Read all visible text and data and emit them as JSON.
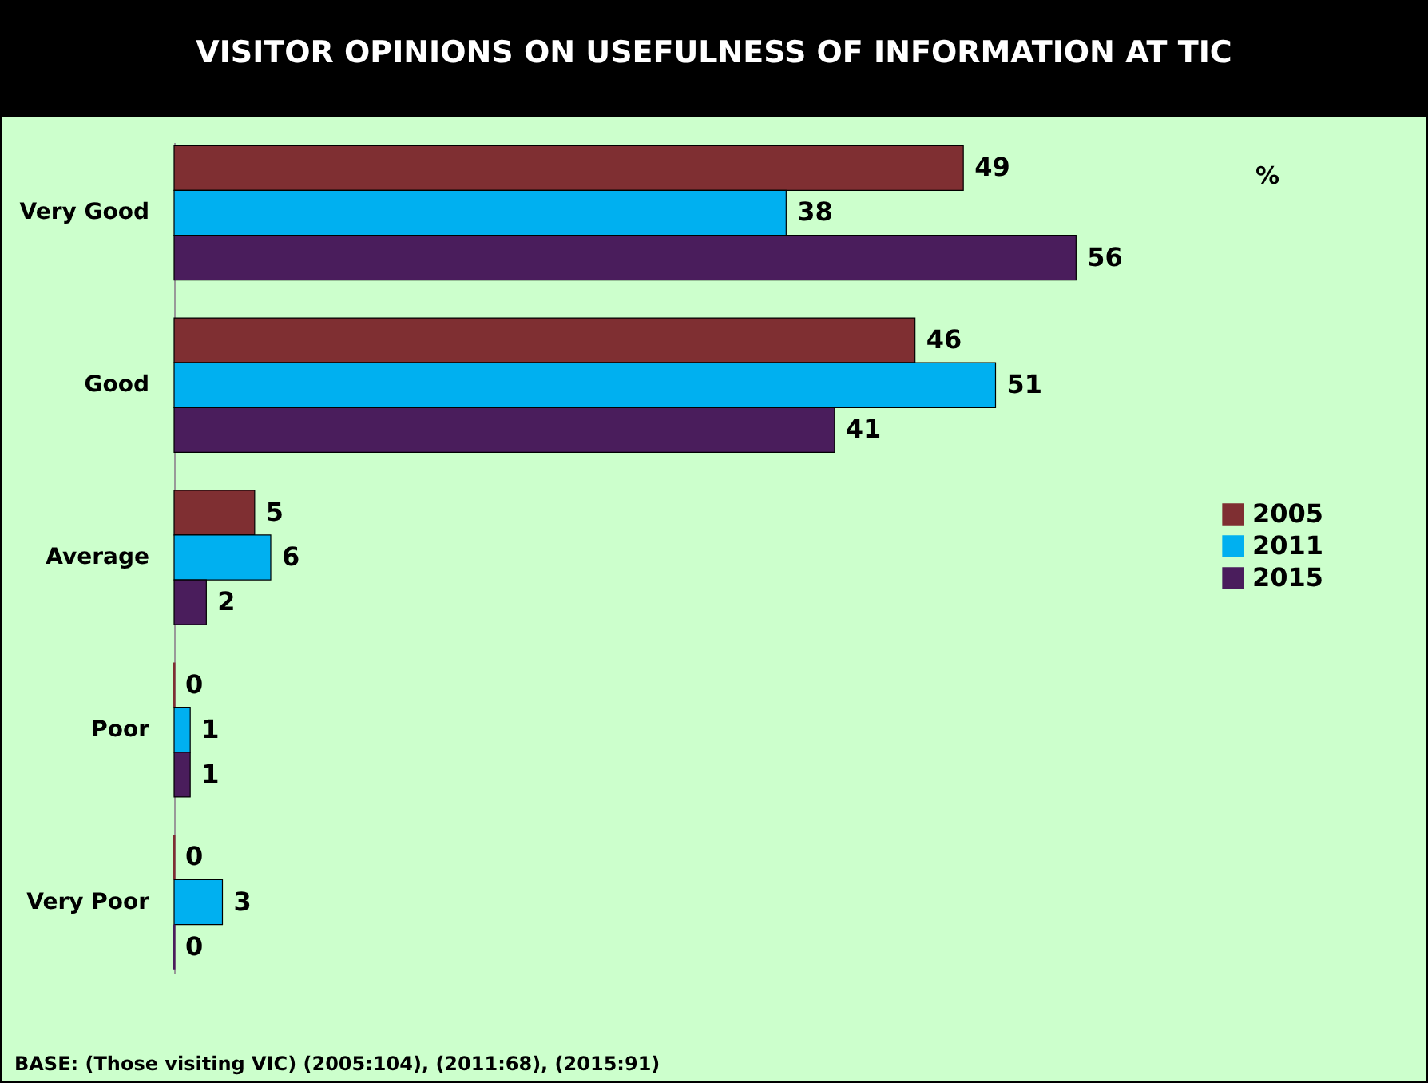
{
  "chart_data": {
    "type": "bar",
    "orientation": "horizontal",
    "title": "VISITOR OPINIONS ON USEFULNESS OF INFORMATION AT TIC",
    "categories": [
      "Very Good",
      "Good",
      "Average",
      "Poor",
      "Very Poor"
    ],
    "series": [
      {
        "name": "2005",
        "color": "#7f2f32",
        "values": [
          49,
          46,
          5,
          0,
          0
        ]
      },
      {
        "name": "2011",
        "color": "#00b0f0",
        "values": [
          38,
          51,
          6,
          1,
          3
        ]
      },
      {
        "name": "2015",
        "color": "#4a1d5c",
        "values": [
          56,
          41,
          2,
          1,
          0
        ]
      }
    ],
    "data_labels": true,
    "legend": "right",
    "annotations": [
      "%",
      "BASE: (Those visiting VIC) (2005:104), (2011:68), (2015:91)"
    ]
  }
}
